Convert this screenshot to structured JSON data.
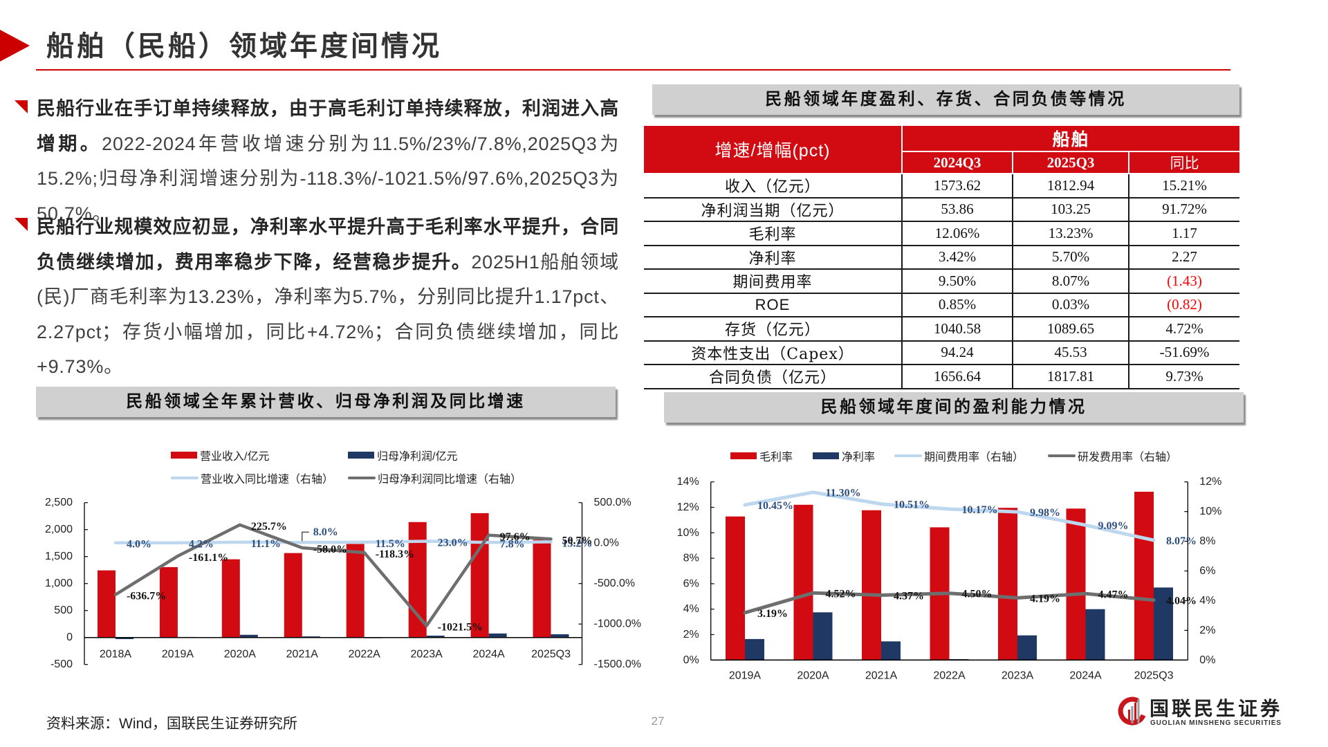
{
  "header": {
    "title": "船舶（民船）领域年度间情况"
  },
  "summary": {
    "paragraphs": [
      {
        "lead": "民船行业在手订单持续释放，由于高毛利订单持续释放，利润进入高增期。",
        "body": "2022-2024年营收增速分别为11.5%/23%/7.8%,2025Q3为15.2%;归母净利润增速分别为-118.3%/-1021.5%/97.6%,2025Q3为50.7%。"
      },
      {
        "lead": "民船行业规模效应初显，净利率水平提升高于毛利率水平提升，合同负债继续增加，费用率稳步下降，经营稳步提升。",
        "body": "2025H1船舶领域(民)厂商毛利率为13.23%，净利率为5.7%，分别同比提升1.17pct、2.27pct；存货小幅增加，同比+4.72%；合同负债继续增加，同比+9.73%。"
      }
    ]
  },
  "table": {
    "caption": "民船领域年度盈利、存货、合同负债等情况",
    "header": {
      "metric": "增速/增幅(pct)",
      "group": "船舶",
      "columns": [
        "2024Q3",
        "2025Q3",
        "同比"
      ]
    },
    "rows": [
      [
        "收入（亿元）",
        "1573.62",
        "1812.94",
        "15.21%"
      ],
      [
        "净利润当期（亿元）",
        "53.86",
        "103.25",
        "91.72%"
      ],
      [
        "毛利率",
        "12.06%",
        "13.23%",
        "1.17"
      ],
      [
        "净利率",
        "3.42%",
        "5.70%",
        "2.27"
      ],
      [
        "期间费用率",
        "9.50%",
        "8.07%",
        "(1.43)"
      ],
      [
        "ROE",
        "0.85%",
        "0.03%",
        "(0.82)"
      ],
      [
        "存货（亿元）",
        "1040.58",
        "1089.65",
        "4.72%"
      ],
      [
        "资本性支出（Capex）",
        "94.24",
        "45.53",
        "-51.69%"
      ],
      [
        "合同负债（亿元）",
        "1656.64",
        "1817.81",
        "9.73%"
      ]
    ]
  },
  "chart_data": [
    {
      "type": "bar+line",
      "title": "民船领域全年累计营收、归母净利润及同比增速",
      "xlabel": "",
      "ylabel": "",
      "categories": [
        "2018A",
        "2019A",
        "2020A",
        "2021A",
        "2022A",
        "2023A",
        "2024A",
        "2025Q3"
      ],
      "series": [
        {
          "key": "revenue",
          "name": "营业收入/亿元",
          "type": "bar",
          "axis": "left",
          "color": "#D20A11",
          "values": [
            1245,
            1305,
            1450,
            1565,
            1735,
            2140,
            2305,
            1813
          ]
        },
        {
          "key": "net_profit",
          "name": "归母净利润/亿元",
          "type": "bar",
          "axis": "left",
          "color": "#1F3864",
          "values": [
            -30,
            10,
            50,
            20,
            -3,
            35,
            75,
            60
          ]
        },
        {
          "key": "revenue_yoy",
          "name": "营业收入同比增速（右轴）",
          "type": "line",
          "axis": "right",
          "color": "#BDD7EE",
          "label_color": "#2D4E7E",
          "values": [
            4.0,
            4.2,
            11.1,
            8.0,
            11.5,
            23.0,
            7.8,
            15.2
          ],
          "labels": [
            "4.0%",
            "4.2%",
            "11.1%",
            "8.0%",
            "11.5%",
            "23.0%",
            "7.8%",
            "15.2%"
          ]
        },
        {
          "key": "net_profit_yoy",
          "name": "归母净利润同比增速（右轴）",
          "type": "line",
          "axis": "right",
          "color": "#6E6E6E",
          "label_color": "#111111",
          "values": [
            -636.7,
            -161.1,
            225.7,
            -58.0,
            -118.3,
            -1021.5,
            97.6,
            50.7
          ],
          "labels": [
            "-636.7%",
            "-161.1%",
            "225.7%",
            "-58.0%",
            "-118.3%",
            "-1021.5%",
            "97.6%",
            "50.7%"
          ]
        }
      ],
      "y_left": {
        "min": -500,
        "max": 2500,
        "step": 500,
        "ticks": [
          "-500",
          "0",
          "500",
          "1,000",
          "1,500",
          "2,000",
          "2,500"
        ]
      },
      "y_right": {
        "min": -1500,
        "max": 500,
        "step": 500,
        "ticks": [
          "-1500.0%",
          "-1000.0%",
          "-500.0%",
          "0.0%",
          "500.0%"
        ]
      },
      "legend_position": "top",
      "grid": false
    },
    {
      "type": "bar+line",
      "title": "民船领域年度间的盈利能力情况",
      "xlabel": "",
      "ylabel": "",
      "categories": [
        "2019A",
        "2020A",
        "2021A",
        "2022A",
        "2023A",
        "2024A",
        "2025Q3"
      ],
      "series": [
        {
          "key": "gross_margin",
          "name": "毛利率",
          "type": "bar",
          "axis": "left",
          "color": "#D20A11",
          "values": [
            11.28,
            12.2,
            11.77,
            10.43,
            11.96,
            11.9,
            13.23
          ]
        },
        {
          "key": "net_margin",
          "name": "净利率",
          "type": "bar",
          "axis": "left",
          "color": "#1F3864",
          "values": [
            1.65,
            3.75,
            1.47,
            0.07,
            1.94,
            4.0,
            5.7
          ]
        },
        {
          "key": "period_expense_ratio",
          "name": "期间费用率（右轴）",
          "type": "line",
          "axis": "right",
          "color": "#BDD7EE",
          "label_color": "#2D4E7E",
          "values": [
            10.45,
            11.3,
            10.51,
            10.17,
            9.98,
            9.09,
            8.07
          ],
          "labels": [
            "10.45%",
            "11.30%",
            "10.51%",
            "10.17%",
            "9.98%",
            "9.09%",
            "8.07%"
          ]
        },
        {
          "key": "rd_expense_ratio",
          "name": "研发费用率（右轴）",
          "type": "line",
          "axis": "right",
          "color": "#6E6E6E",
          "label_color": "#111111",
          "values": [
            3.19,
            4.52,
            4.37,
            4.5,
            4.19,
            4.47,
            4.04
          ],
          "labels": [
            "3.19%",
            "4.52%",
            "4.37%",
            "4.50%",
            "4.19%",
            "4.47%",
            "4.04%"
          ]
        }
      ],
      "y_left": {
        "min": 0,
        "max": 14,
        "step": 2,
        "ticks": [
          "0%",
          "2%",
          "4%",
          "6%",
          "8%",
          "10%",
          "12%",
          "14%"
        ]
      },
      "y_right": {
        "min": 0,
        "max": 12,
        "step": 2,
        "ticks": [
          "0%",
          "2%",
          "4%",
          "6%",
          "8%",
          "10%",
          "12%"
        ]
      },
      "legend_position": "top",
      "grid": false
    }
  ],
  "footer": {
    "source": "资料来源：Wind，国联民生证券研究所",
    "page_number": "27"
  },
  "brand": {
    "name_cn": "国联民生证券",
    "name_en": "GUOLIAN MINSHENG SECURITIES"
  },
  "colors": {
    "brand_red": "#CC0000",
    "table_header_red": "#D20A11",
    "caption_bg": "#D0D0D0",
    "negative_value": "#FF0000"
  }
}
